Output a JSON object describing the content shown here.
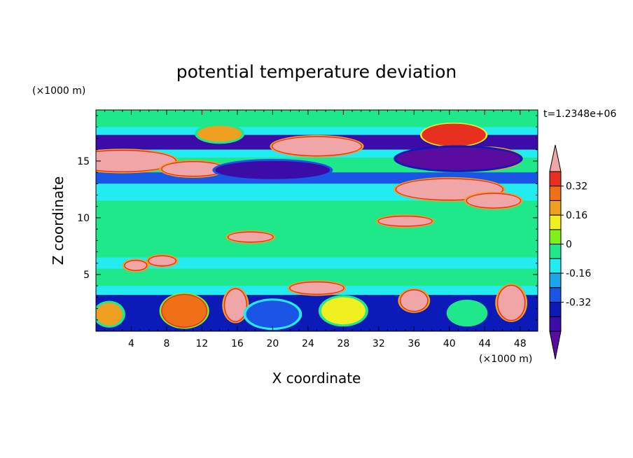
{
  "chart_data": {
    "type": "heatmap",
    "title": "potential temperature deviation",
    "xlabel": "X coordinate",
    "ylabel": "Z coordinate",
    "x_unit": "(×1000 m)",
    "y_unit": "(×1000 m)",
    "time_label": "t=1.2348e+06",
    "xlim": [
      0,
      50
    ],
    "ylim": [
      0,
      19.5
    ],
    "x_ticks": [
      4,
      8,
      12,
      16,
      20,
      24,
      28,
      32,
      36,
      40,
      44,
      48
    ],
    "y_ticks": [
      5,
      10,
      15
    ],
    "colorbar": {
      "levels": [
        -0.48,
        -0.4,
        -0.32,
        -0.24,
        -0.16,
        -0.08,
        0,
        0.08,
        0.16,
        0.24,
        0.32,
        0.4,
        0.48
      ],
      "colors": [
        "#5a0c9e",
        "#3c0ca8",
        "#0c1ab8",
        "#1a55e6",
        "#1aa6e8",
        "#22ecf0",
        "#1ee88a",
        "#7ef01a",
        "#f0f020",
        "#f0a020",
        "#f07018",
        "#e83020",
        "#f0a6a6"
      ],
      "tick_labels": [
        "0.32",
        "0.16",
        "0",
        "-0.16",
        "-0.32"
      ],
      "tick_values": [
        0.32,
        0.16,
        0,
        -0.16,
        -0.32
      ]
    },
    "bands": [
      {
        "z": [
          18.0,
          19.5
        ],
        "value": 0.04
      },
      {
        "z": [
          17.3,
          18.0
        ],
        "value": -0.04
      },
      {
        "z": [
          16.0,
          17.3
        ],
        "value": -0.4
      },
      {
        "z": [
          15.3,
          16.0
        ],
        "value": -0.08
      },
      {
        "z": [
          14.0,
          15.3
        ],
        "value": 0.0
      },
      {
        "z": [
          13.0,
          14.0
        ],
        "value": -0.24
      },
      {
        "z": [
          11.5,
          13.0
        ],
        "value": -0.08
      },
      {
        "z": [
          10.0,
          11.5
        ],
        "value": 0.02
      },
      {
        "z": [
          6.5,
          10.0
        ],
        "value": 0.0
      },
      {
        "z": [
          5.5,
          6.5
        ],
        "value": -0.04
      },
      {
        "z": [
          4.0,
          5.5
        ],
        "value": 0.04
      },
      {
        "z": [
          3.2,
          4.0
        ],
        "value": -0.04
      },
      {
        "z": [
          0.0,
          3.2
        ],
        "value": -0.32
      }
    ],
    "features": [
      {
        "x": 3.0,
        "z": 15.0,
        "rx": 6.0,
        "rz": 0.9,
        "value": 0.48
      },
      {
        "x": 11.0,
        "z": 14.3,
        "rx": 3.5,
        "rz": 0.6,
        "value": 0.48
      },
      {
        "x": 44.0,
        "z": 15.2,
        "rx": 4.0,
        "rz": 0.9,
        "value": 0.48
      },
      {
        "x": 25.0,
        "z": 16.3,
        "rx": 5.0,
        "rz": 0.8,
        "value": 0.48
      },
      {
        "x": 40.5,
        "z": 17.3,
        "rx": 3.5,
        "rz": 0.9,
        "value": 0.4
      },
      {
        "x": 14.0,
        "z": 17.4,
        "rx": 2.5,
        "rz": 0.7,
        "value": 0.24
      },
      {
        "x": 20.0,
        "z": 14.2,
        "rx": 6.5,
        "rz": 0.8,
        "value": -0.4
      },
      {
        "x": 41.0,
        "z": 15.2,
        "rx": 7.0,
        "rz": 1.0,
        "value": -0.48
      },
      {
        "x": 40.0,
        "z": 12.5,
        "rx": 6.0,
        "rz": 0.9,
        "value": 0.48
      },
      {
        "x": 45.0,
        "z": 11.5,
        "rx": 3.0,
        "rz": 0.6,
        "value": 0.48
      },
      {
        "x": 35.0,
        "z": 9.7,
        "rx": 3.0,
        "rz": 0.4,
        "value": 0.48
      },
      {
        "x": 17.5,
        "z": 8.3,
        "rx": 2.5,
        "rz": 0.4,
        "value": 0.48
      },
      {
        "x": 7.5,
        "z": 6.2,
        "rx": 1.5,
        "rz": 0.4,
        "value": 0.48
      },
      {
        "x": 4.5,
        "z": 5.8,
        "rx": 1.2,
        "rz": 0.4,
        "value": 0.48
      },
      {
        "x": 25.0,
        "z": 3.8,
        "rx": 3.0,
        "rz": 0.5,
        "value": 0.48
      },
      {
        "x": 15.8,
        "z": 2.3,
        "rx": 1.2,
        "rz": 1.4,
        "value": 0.48
      },
      {
        "x": 36.0,
        "z": 2.7,
        "rx": 1.5,
        "rz": 0.9,
        "value": 0.48
      },
      {
        "x": 47.0,
        "z": 2.5,
        "rx": 1.5,
        "rz": 1.5,
        "value": 0.48
      },
      {
        "x": 10.0,
        "z": 1.8,
        "rx": 2.5,
        "rz": 1.4,
        "value": 0.32
      },
      {
        "x": 28.0,
        "z": 1.8,
        "rx": 2.5,
        "rz": 1.2,
        "value": 0.16
      },
      {
        "x": 20.0,
        "z": 1.5,
        "rx": 3.0,
        "rz": 1.2,
        "value": -0.24
      },
      {
        "x": 1.5,
        "z": 1.5,
        "rx": 1.5,
        "rz": 1.0,
        "value": 0.24
      },
      {
        "x": 42.0,
        "z": 1.6,
        "rx": 2.0,
        "rz": 1.0,
        "value": 0.0
      }
    ]
  }
}
